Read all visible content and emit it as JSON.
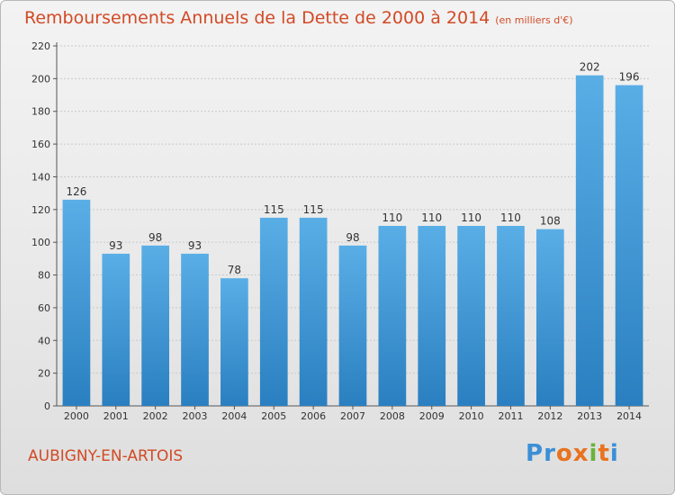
{
  "title": "Remboursements Annuels de la Dette de 2000 à 2014",
  "subtitle": "(en milliers d'€)",
  "city": "AUBIGNY-EN-ARTOIS",
  "logo": {
    "text": "Proxiti",
    "letters": [
      "P",
      "r",
      "o",
      "x",
      "i",
      "t",
      "i"
    ],
    "colors": [
      "#3b8fd6",
      "#3b8fd6",
      "#e8731e",
      "#e8731e",
      "#6ab23c",
      "#e8731e",
      "#3b8fd6"
    ]
  },
  "colors": {
    "bar_light": "#5aaee6",
    "bar_dark": "#2a7fc0",
    "title": "#d24a25"
  },
  "chart_data": {
    "type": "bar",
    "title": "Remboursements Annuels de la Dette de 2000 à 2014",
    "subtitle": "(en milliers d'€)",
    "categories": [
      "2000",
      "2001",
      "2002",
      "2003",
      "2004",
      "2005",
      "2006",
      "2007",
      "2008",
      "2009",
      "2010",
      "2011",
      "2012",
      "2013",
      "2014"
    ],
    "values": [
      126,
      93,
      98,
      93,
      78,
      115,
      115,
      98,
      110,
      110,
      110,
      110,
      108,
      202,
      196
    ],
    "ylim": [
      0,
      220
    ],
    "yticks": [
      0,
      20,
      40,
      60,
      80,
      100,
      120,
      140,
      160,
      180,
      200,
      220
    ],
    "grid": true,
    "xlabel": "",
    "ylabel": ""
  }
}
